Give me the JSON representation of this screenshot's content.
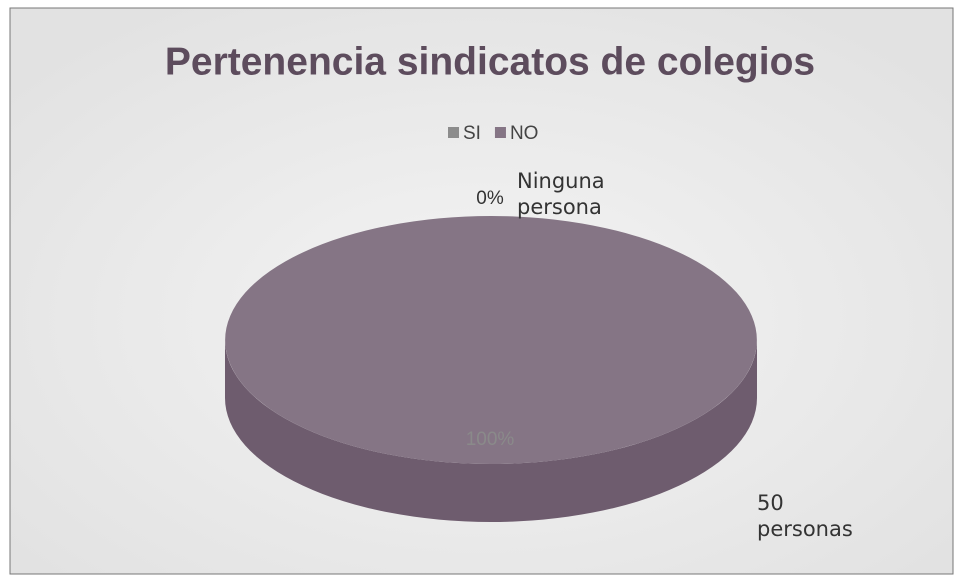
{
  "chart_data": {
    "type": "pie",
    "title": "Pertenencia sindicatos de colegios",
    "categories": [
      "SI",
      "NO"
    ],
    "values": [
      0,
      100
    ],
    "value_labels": [
      "0%",
      "100%"
    ],
    "point_labels": [
      "Ninguna persona",
      "50 personas"
    ],
    "colors": [
      "#8c8c8c",
      "#857585"
    ],
    "legend": "top"
  }
}
